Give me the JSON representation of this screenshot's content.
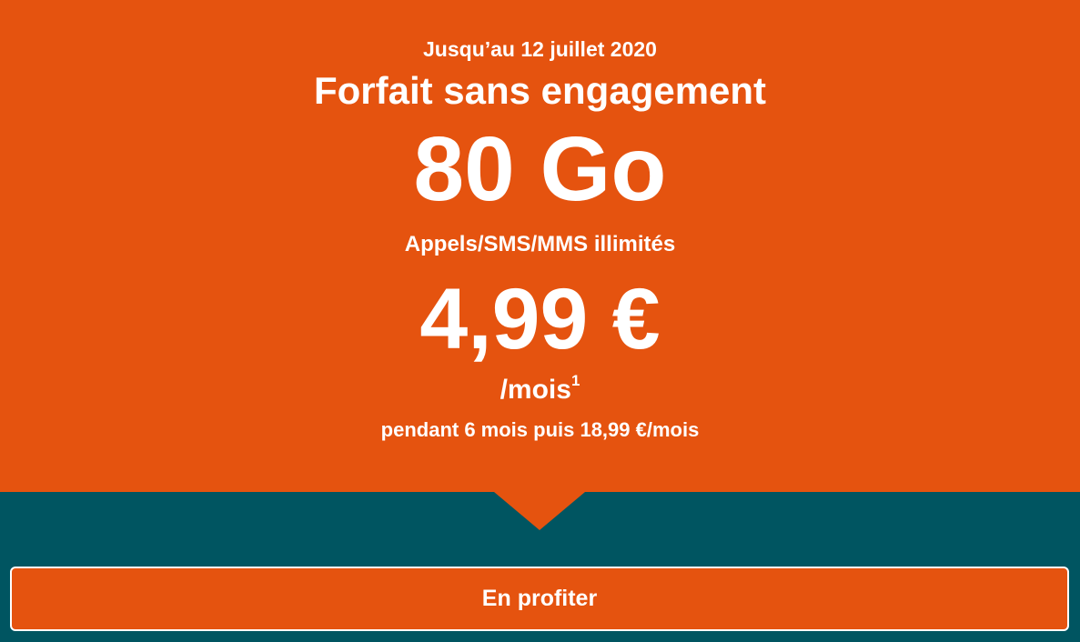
{
  "colors": {
    "orange": "#E5530F",
    "teal": "#005561",
    "text": "#FFFFFF"
  },
  "hero": {
    "promo_date": "Jusqu’au 12 juillet 2020",
    "plan_title": "Forfait sans engagement",
    "data_amount": "80 Go",
    "features": "Appels/SMS/MMS illimités",
    "price": "4,99 €",
    "per_month": "/mois",
    "per_month_superscript": "1",
    "price_condition": "pendant 6 mois puis 18,99 €/mois"
  },
  "cta": {
    "label": "En profiter"
  }
}
